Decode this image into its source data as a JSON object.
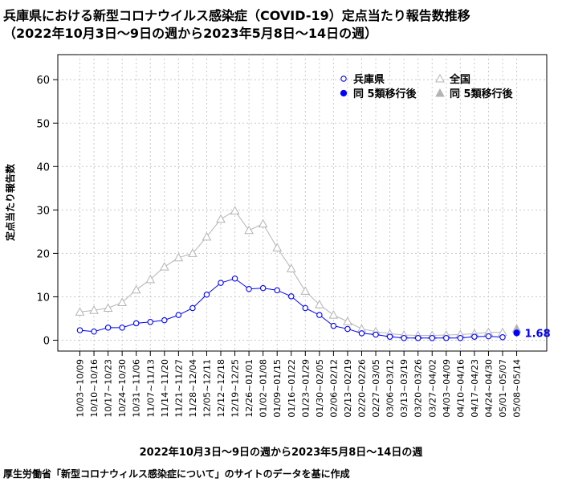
{
  "chart_data": {
    "type": "line",
    "title": "兵庫県における新型コロナウイルス感染症（COVID-19）定点当たり報告数推移",
    "subtitle": "（2022年10月3日〜9日の週から2023年5月8日〜14日の週）",
    "xlabel": "2022年10月3日〜9日の週から2023年5月8日〜14日の週",
    "ylabel": "定点当たり報告数",
    "source": "厚生労働省「新型コロナウィルス感染症について」のサイトのデータを基に作成",
    "ylim": [
      0,
      65
    ],
    "yticks": [
      0,
      10,
      20,
      30,
      40,
      50,
      60
    ],
    "grid": true,
    "legend_position": "top-right",
    "categories": [
      "10/03~10/09",
      "10/10~10/16",
      "10/17~10/23",
      "10/24~10/30",
      "10/31~11/06",
      "11/07~11/13",
      "11/14~11/20",
      "11/21~11/27",
      "11/28~12/04",
      "12/05~12/11",
      "12/12~12/18",
      "12/19~12/25",
      "12/26~01/01",
      "01/02~01/08",
      "01/09~01/15",
      "01/16~01/22",
      "01/23~01/29",
      "01/30~02/05",
      "02/06~02/12",
      "02/13~02/19",
      "02/20~02/26",
      "02/27~03/05",
      "03/06~03/12",
      "03/13~03/19",
      "03/20~03/26",
      "03/27~04/02",
      "04/03~04/09",
      "04/10~04/16",
      "04/17~04/23",
      "04/24~04/30",
      "05/01~05/07",
      "05/08~05/14"
    ],
    "series": [
      {
        "name": "兵庫県",
        "color": "#0000ff",
        "marker": "open-circle",
        "values": [
          2.3,
          2.0,
          2.9,
          2.9,
          3.9,
          4.2,
          4.6,
          5.8,
          7.4,
          10.5,
          13.2,
          14.2,
          11.8,
          12.0,
          11.5,
          10.1,
          7.4,
          5.8,
          3.3,
          2.6,
          1.6,
          1.3,
          0.8,
          0.5,
          0.5,
          0.5,
          0.5,
          0.5,
          0.8,
          0.9,
          0.7,
          null
        ]
      },
      {
        "name": "全国",
        "color": "#b4b4b4",
        "marker": "open-triangle",
        "values": [
          6.5,
          6.9,
          7.4,
          8.7,
          11.6,
          14.0,
          16.9,
          19.0,
          20.0,
          23.8,
          27.9,
          29.8,
          25.3,
          26.8,
          21.3,
          16.5,
          11.3,
          8.2,
          5.8,
          4.3,
          2.6,
          2.0,
          1.5,
          1.2,
          1.1,
          1.1,
          1.2,
          1.3,
          1.5,
          1.8,
          1.8,
          null
        ]
      },
      {
        "name": "同 5類移行後",
        "color": "#0000ff",
        "marker": "filled-circle",
        "values": [
          null,
          null,
          null,
          null,
          null,
          null,
          null,
          null,
          null,
          null,
          null,
          null,
          null,
          null,
          null,
          null,
          null,
          null,
          null,
          null,
          null,
          null,
          null,
          null,
          null,
          null,
          null,
          null,
          null,
          null,
          null,
          1.68
        ]
      },
      {
        "name": "同 5類移行後",
        "color": "#b4b4b4",
        "marker": "filled-triangle",
        "values": [
          null,
          null,
          null,
          null,
          null,
          null,
          null,
          null,
          null,
          null,
          null,
          null,
          null,
          null,
          null,
          null,
          null,
          null,
          null,
          null,
          null,
          null,
          null,
          null,
          null,
          null,
          null,
          null,
          null,
          null,
          null,
          2.63
        ]
      }
    ],
    "annotations": [
      {
        "category": "05/08~05/14",
        "text": "1.68",
        "color": "#0000ff"
      }
    ]
  }
}
